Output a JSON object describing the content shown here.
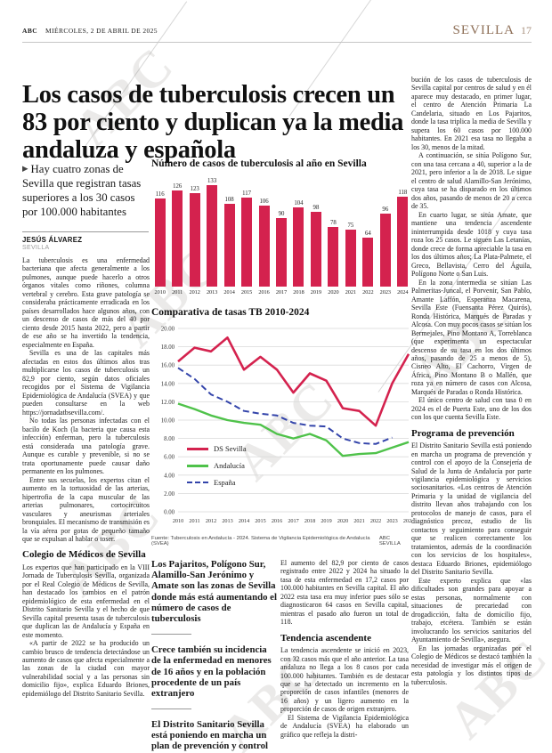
{
  "page": {
    "brand": "ABC",
    "date_line": "MIÉRCOLES, 2 DE ABRIL DE 2025",
    "section": "SEVILLA",
    "page_number": "17"
  },
  "icons": {
    "arrow_bullet": "▶"
  },
  "article": {
    "headline": "Los casos de tuberculosis crecen un 83 por ciento y duplican ya la media andaluza y española",
    "standfirst": "Hay cuatro zonas de Sevilla que registran tasas superiores a los 30 casos por 100.000 habitantes",
    "byline": "JESÚS ÁLVAREZ",
    "byline_location": "SEVILLA"
  },
  "columns": {
    "col1": [
      {
        "t": "p",
        "text": "La tuberculosis es una enfermedad bacteriana que afecta generalmente a los pulmones, aunque puede hacerlo a otros órganos vitales como riñones, columna vertebral y cerebro. Esta grave patología se consideraba prácticamente erradicada en los países desarrollados hace algunos años, con un descenso de casos de más del 40 por ciento desde 2015 hasta 2022, pero a partir de ese año se ha invertido la tendencia, especialmente en España."
      },
      {
        "t": "p",
        "text": "Sevilla es una de las capitales más afectadas en estos dos últimos años tras multiplicarse los casos de tuberculosis un 82,9 por ciento, según datos oficiales recogidos por el Sistema de Vigilancia Epidemiológica de Andalucía (SVEA) y que pueden consultarse en la web https://jornadatbsevilla.com/."
      },
      {
        "t": "p",
        "text": "No todas las personas infectadas con el bacilo de Koch (la bacteria que causa esta infección) enferman, pero la tuberculosis está considerada una patología grave. Aunque es curable y prevenible, si no se trata oportunamente puede causar daño permanente en los pulmones."
      },
      {
        "t": "p",
        "text": "Entre sus secuelas, los expertos citan el aumento en la tortuosidad de las arterias, hipertrofia de la capa muscular de las arterias pulmonares, cortocircuitos vasculares y aneurismas arteriales bronquiales. El mecanismo de transmisión es la vía aérea por gotas de pequeño tamaño que se expulsan al hablar o toser."
      },
      {
        "t": "h",
        "text": "Colegio de Médicos de Sevilla"
      },
      {
        "t": "p",
        "text": "Los expertos que han participado en la VIII Jornada de Tuberculosis Sevilla, organizada por el Real Colegio de Médicos de Sevilla, han destacado los cambios en el patrón epidemiológico de esta enfermedad en el Distrito Sanitario Sevilla y el hecho de que Sevilla capital presenta tasas de tuberculosis que duplican las de Andalucía y España en este momento."
      },
      {
        "t": "p",
        "text": "«A partir de 2022 se ha producido un cambio brusco de tendencia detectándose un aumento de casos que afecta especialmente a las zonas de la ciudad con mayor vulnerabilidad social y a las personas sin domicilio fijo», explica Eduardo Briones, epidemiólogo del Distrito Sanitario Sevilla."
      }
    ],
    "col4": [
      {
        "t": "p",
        "text": "El aumento del 82,9 por ciento de casos registrado entre 2022 y 2024 ha situado la tasa de esta enfermedad en 17,2 casos por 100.000 habitantes en Sevilla capital. El año 2022 esta tasa era muy inferior pues sólo se diagnosticaron 64 casos en Sevilla capital, mientras el pasado año fueron un total de 118."
      },
      {
        "t": "h",
        "text": "Tendencia ascendente"
      },
      {
        "t": "p",
        "text": "La tendencia ascendente se inició en 2023, con 32 casos más que el año anterior. La tasa andaluza no llega a los 8 casos por cada 100.000 habitantes. También es de destacar que se ha detectado un incremento en la proporción de casos infantiles (menores de 16 años) y un ligero aumento en la proporción de casos de origen extranjero."
      },
      {
        "t": "p",
        "text": "El Sistema de Vigilancia Epidemiológica de Andalucía (SVEA) ha elaborado un gráfico que refleja la distri-"
      }
    ],
    "col5": [
      {
        "t": "p",
        "text": "bución de los casos de tuberculosis de Sevilla capital por centros de salud y en él aparece muy destacado, en primer lugar, el centro de Atención Primaria La Candelaria, situado en Los Pajaritos, donde la tasa triplica la media de Sevilla y supera los 60 casos por 100.000 habitantes. En 2021 esa tasa no llegaba a los 30, menos de la mitad."
      },
      {
        "t": "p",
        "text": "A continuación, se sitúa Polígono Sur, con una tasa cercana a 40, superior a la de 2021, pero inferior a la de 2018. Le sigue el centro de salud Alamillo-San Jerónimo, cuya tasa se ha disparado en los últimos dos años, pasando de menos de 20 a cerca de 35."
      },
      {
        "t": "p",
        "text": "En cuarto lugar, se sitúa Amate, que mantiene una tendencia ascendente ininterrumpida desde 1018 y cuya tasa roza los 25 casos. Le siguen Las Letanías, donde crece de forma apreciable la tasa en los dos últimos años; La Plata-Palmete, el Greco, Bellavista, Cerro del Águila, Polígono Norte o San Luis."
      },
      {
        "t": "p",
        "text": "En la zona intermedia se sitúan Las Palmeritas-Juncal, el Porvenir, San Pablo, Amante Laffón, Esperanza Macarena, Sevilla Este (Fuensanta Pérez Quirós), Ronda Histórica, Marqués de Paradas y Alcosa. Con muy pocos casos se sitúan los Bermejales, Pino Montano A, Torreblanca (que experimenta un espectacular descenso de su tasa en los dos últimos años, pasando de 25 a menos de 5), Cisneo Alto, El Cachorro, Virgen de África, Pino Montano B o Mallén, que roza ya en número de casos con Alcosa, Marqués de Paradas o Ronda Histórica."
      },
      {
        "t": "p",
        "text": "El único centro de salud con tasa 0 en 2024 es el de Puerta Este, uno de los dos con los que cuenta Sevilla Este."
      },
      {
        "t": "h",
        "text": "Programa de prevención"
      },
      {
        "t": "p",
        "text": "El Distrito Sanitario Sevilla está poniendo en marcha un programa de prevención y control con el apoyo de la Consejería de Salud de la Junta de Andalucía por parte vigilancia epidemiológica y servicios sociosanitarios. «Los centros de Atención Primaria y la unidad de vigilancia del distrito llevan años trabajando con los protocolos de manejo de casos, para el diagnóstico precoz, estudio de lis contactos y seguimiento para conseguir que se realicen correctamente los tratamientos, además de la coordinación con los servicios de los hospitales», destaca Eduardo Briones, epidemiólogo del Distrito Sanitario Sevilla."
      },
      {
        "t": "p",
        "text": "Este experto explica que «las dificultades son grandes para apoyar a estas personas, normalmente con situaciones de precariedad con drogadicción, falta de domicilio fijo, trabajo, etcétera. También se están involucrando los servicios sanitarios del Ayuntamiento de Sevilla», asegura."
      },
      {
        "t": "p",
        "text": "En las jornadas organizadas por el Colegio de Médicos se destacó también la necesidad de investigar más el origen de esta patología y los distintos tipos de tuberculosis."
      }
    ]
  },
  "pull_quotes": [
    "Los Pajaritos, Polígono Sur, Alamillo-San Jerónimo y Amate son las zonas de Sevilla donde más está aumentando el número de casos de tuberculosis",
    "Crece también su incidencia de la enfermedad en menores de 16 años y en la población procedente de un país extranjero",
    "El Distrito Sanitario Sevilla está poniendo en marcha un plan de prevención y control en colaboración con la Consejería de Salud"
  ],
  "source": {
    "text": "Fuente: Tuberculosis en Andalucía - 2024. Sistema de Vigilancia Epidemiológica de Andalucía (SVEA)",
    "credit": "ABC SEVILLA"
  },
  "chart_data": [
    {
      "type": "bar",
      "title": "Número de casos de tuberculosis al año en Sevilla",
      "categories": [
        "2010",
        "2011",
        "2012",
        "2013",
        "2014",
        "2015",
        "2016",
        "2017",
        "2018",
        "2019",
        "2020",
        "2021",
        "2022",
        "2023",
        "2024"
      ],
      "values": [
        116,
        126,
        123,
        133,
        108,
        117,
        106,
        90,
        104,
        98,
        78,
        75,
        64,
        96,
        118
      ],
      "bar_color": "#d4224e",
      "ylim": [
        0,
        140
      ],
      "grid": false
    },
    {
      "type": "line",
      "title": "Comparativa de tasas TB 2010-2024",
      "x": [
        "2010",
        "2011",
        "2012",
        "2013",
        "2014",
        "2015",
        "2016",
        "2017",
        "2018",
        "2019",
        "2020",
        "2021",
        "2022",
        "2023",
        "2024"
      ],
      "ylim": [
        0,
        20
      ],
      "ytick_step": 2,
      "grid": true,
      "legend_position": "inside-left",
      "series": [
        {
          "name": "DS Sevilla",
          "color": "#d4224e",
          "style": "solid",
          "width": 2.6,
          "values": [
            16.4,
            17.9,
            17.5,
            19.0,
            15.5,
            16.9,
            15.5,
            13.0,
            15.1,
            14.3,
            11.3,
            11.0,
            9.4,
            14.0,
            17.2
          ]
        },
        {
          "name": "Andalucía",
          "color": "#4fc24a",
          "style": "solid",
          "width": 2.4,
          "values": [
            11.8,
            11.2,
            10.5,
            10.0,
            9.7,
            9.5,
            8.5,
            8.0,
            8.5,
            7.8,
            6.1,
            6.3,
            6.4,
            7.0,
            7.6
          ]
        },
        {
          "name": "España",
          "color": "#3344aa",
          "style": "dashed",
          "width": 2,
          "values": [
            15.7,
            14.5,
            12.8,
            12.0,
            11.0,
            10.7,
            10.5,
            9.7,
            9.4,
            9.3,
            8.0,
            7.5,
            7.4,
            8.1
          ]
        }
      ]
    }
  ]
}
